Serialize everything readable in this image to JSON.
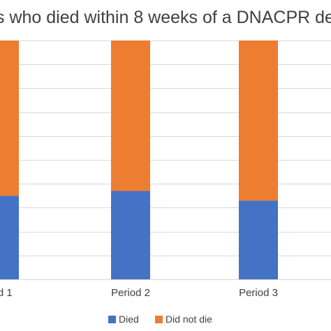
{
  "chart_data": {
    "type": "bar",
    "stacked": true,
    "percent_stacked": true,
    "title": "s who died within 8 weeks of a DNACPR de",
    "categories": [
      "riod 1",
      "Period 2",
      "Period 3"
    ],
    "series": [
      {
        "name": "Died",
        "color": "#4472c4",
        "values": [
          35,
          37,
          33
        ]
      },
      {
        "name": "Did not die",
        "color": "#ed7d31",
        "values": [
          65,
          63,
          67
        ]
      }
    ],
    "ylim": [
      0,
      100
    ],
    "grid": true,
    "legend": "bottom"
  }
}
